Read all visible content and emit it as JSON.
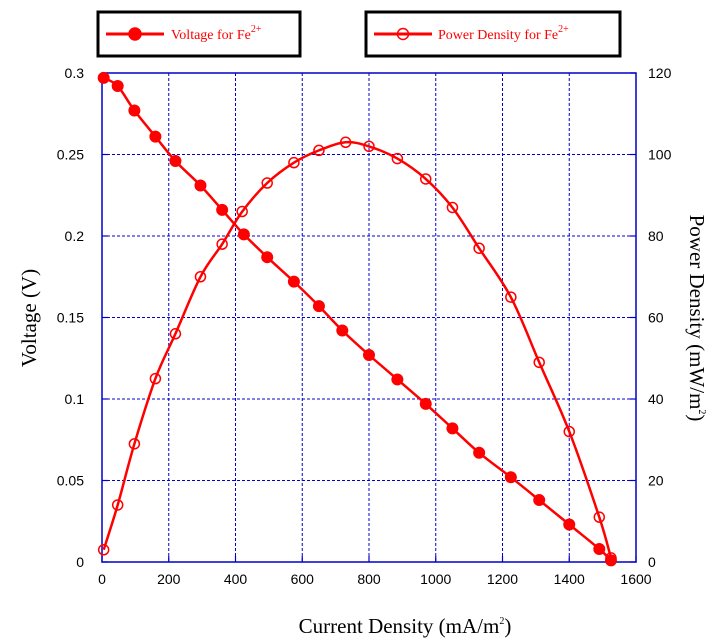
{
  "chart_data": {
    "type": "line",
    "xlabel": "Current Density (mA/m",
    "xlabel_sup": "2",
    "xlabel_end": ")",
    "ylabel": "Voltage (V)",
    "y2label": "Power Density (mW/m",
    "y2label_sup": "2",
    "y2label_end": ")",
    "xlim": [
      0,
      1600
    ],
    "ylim": [
      0,
      0.3
    ],
    "y2lim": [
      0,
      120
    ],
    "grid": true,
    "x_ticks": [
      "0",
      "200",
      "400",
      "600",
      "800",
      "1000",
      "1200",
      "1400",
      "1600"
    ],
    "y_ticks": [
      "0",
      "0.05",
      "0.1",
      "0.15",
      "0.2",
      "0.25",
      "0.3"
    ],
    "y2_ticks": [
      "0",
      "20",
      "40",
      "60",
      "80",
      "100",
      "120"
    ],
    "colors": {
      "series": "#ff0000",
      "grid": "#0000cc",
      "axes": "#0000cc",
      "frame": "#000000"
    },
    "series": [
      {
        "name": "Voltage for Fe",
        "name_sup": "2+",
        "axis": "left",
        "marker": "filled-circle",
        "x": [
          5,
          47,
          97,
          160,
          220,
          295,
          360,
          425,
          495,
          575,
          650,
          720,
          800,
          885,
          970,
          1050,
          1130,
          1225,
          1310,
          1400,
          1490,
          1525
        ],
        "y": [
          0.297,
          0.292,
          0.277,
          0.261,
          0.246,
          0.231,
          0.216,
          0.201,
          0.187,
          0.172,
          0.157,
          0.142,
          0.127,
          0.112,
          0.097,
          0.082,
          0.067,
          0.052,
          0.038,
          0.023,
          0.008,
          0.001
        ]
      },
      {
        "name": "Power Density for Fe",
        "name_sup": "2+",
        "axis": "right",
        "marker": "open-circle",
        "x": [
          5,
          47,
          97,
          160,
          220,
          295,
          360,
          420,
          495,
          575,
          650,
          730,
          800,
          885,
          970,
          1050,
          1130,
          1225,
          1310,
          1400,
          1490,
          1525
        ],
        "y": [
          3,
          14,
          29,
          45,
          56,
          70,
          78,
          86,
          93,
          98,
          101,
          103,
          102,
          99,
          94,
          87,
          77,
          65,
          49,
          32,
          11,
          1
        ]
      }
    ]
  }
}
